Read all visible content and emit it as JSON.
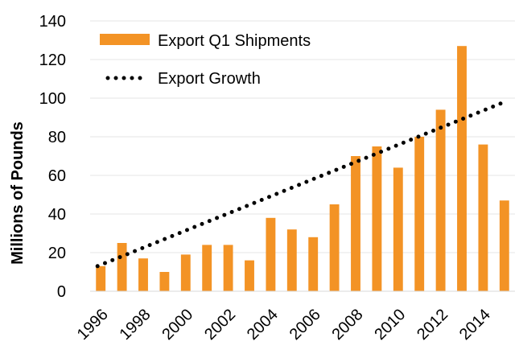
{
  "chart_data": {
    "type": "bar",
    "title": "",
    "xlabel": "",
    "ylabel": "Millions of Pounds",
    "ylim": [
      0,
      140
    ],
    "yticks": [
      0,
      20,
      40,
      60,
      80,
      100,
      120,
      140
    ],
    "grid": true,
    "legend_position": "top-left",
    "categories": [
      1996,
      1997,
      1998,
      1999,
      2000,
      2001,
      2002,
      2003,
      2004,
      2005,
      2006,
      2007,
      2008,
      2009,
      2010,
      2011,
      2012,
      2013,
      2014,
      2015
    ],
    "xtick_labels": [
      "1996",
      "1998",
      "2000",
      "2002",
      "2004",
      "2006",
      "2008",
      "2010",
      "2012",
      "2014"
    ],
    "series": [
      {
        "name": "Export Q1 Shipments",
        "kind": "bar",
        "color": "#F39325",
        "values": [
          13,
          25,
          17,
          10,
          19,
          24,
          24,
          16,
          38,
          32,
          28,
          45,
          70,
          75,
          64,
          80,
          94,
          127,
          76,
          47
        ]
      },
      {
        "name": "Export Growth",
        "kind": "trendline",
        "style": "dotted",
        "color": "#000000",
        "start": [
          1996,
          13
        ],
        "end": [
          2015,
          98
        ]
      }
    ]
  }
}
